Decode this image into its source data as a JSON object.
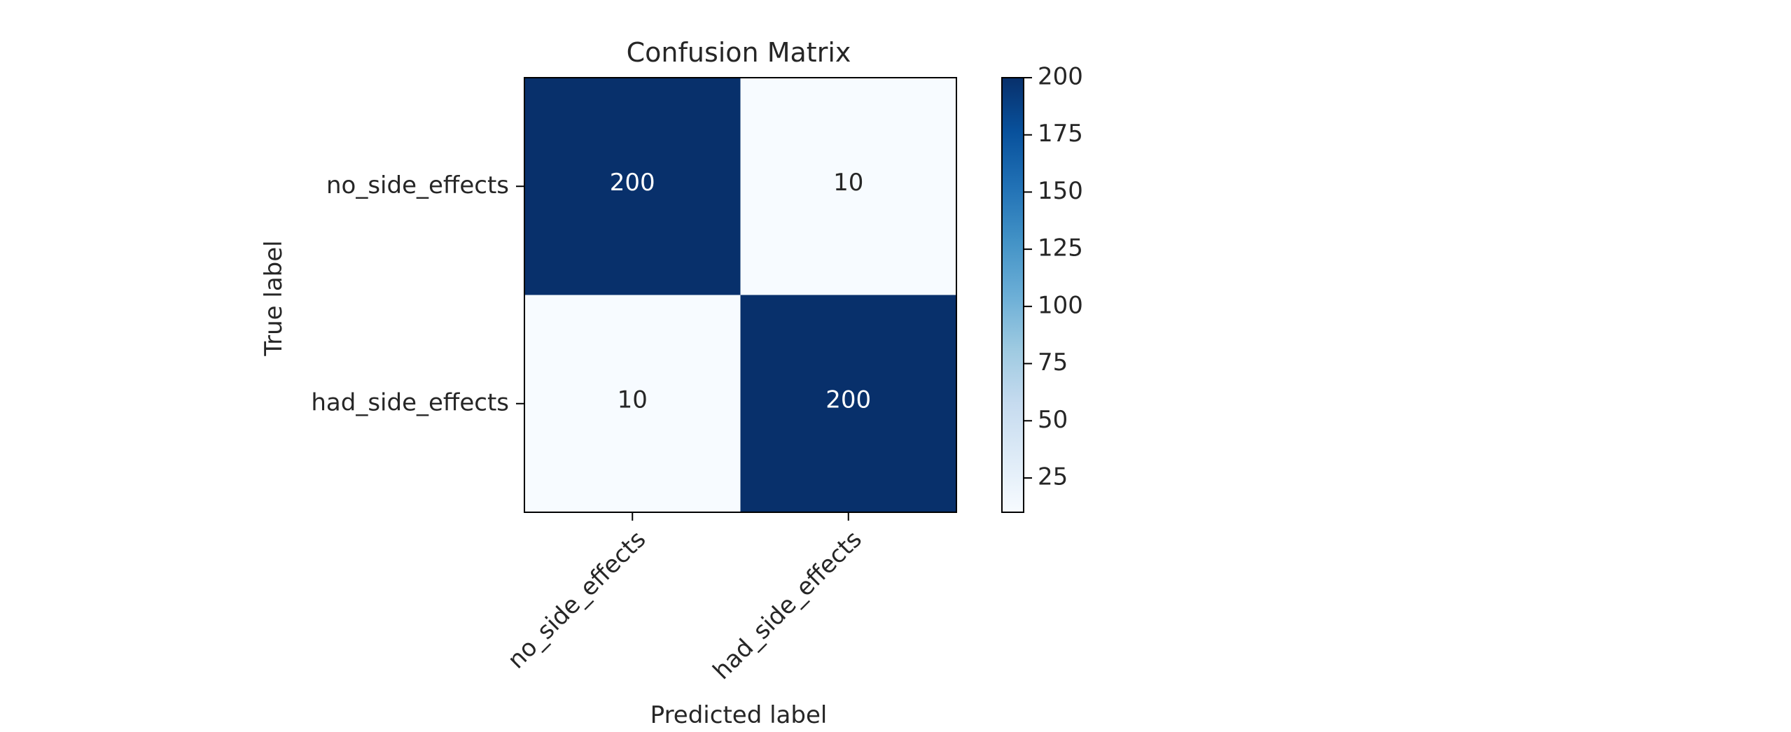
{
  "chart_data": {
    "type": "heatmap",
    "title": "Confusion Matrix",
    "xlabel": "Predicted label",
    "ylabel": "True label",
    "x_categories": [
      "no_side_effects",
      "had_side_effects"
    ],
    "y_categories": [
      "no_side_effects",
      "had_side_effects"
    ],
    "matrix": [
      [
        200,
        10
      ],
      [
        10,
        200
      ]
    ],
    "cell_labels": [
      [
        "200",
        "10"
      ],
      [
        "10",
        "200"
      ]
    ],
    "colormap": "Blues",
    "color_low": "#f7fbff",
    "color_high": "#08306b",
    "colorbar": {
      "range": [
        10,
        200
      ],
      "ticks": [
        25,
        50,
        75,
        100,
        125,
        150,
        175,
        200
      ],
      "tick_labels": [
        "25",
        "50",
        "75",
        "100",
        "125",
        "150",
        "175",
        "200"
      ]
    },
    "grid": false
  }
}
